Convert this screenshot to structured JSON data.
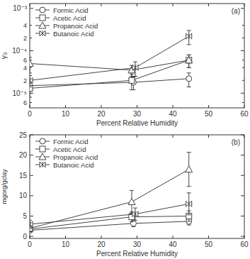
{
  "chart_data": [
    {
      "type": "line",
      "annotation": "(a)",
      "x_label": "Percent Relative Humidity",
      "y_label": "γ₀",
      "log": "y",
      "legend": "upper-left",
      "grid": false,
      "xlim": [
        0,
        60
      ],
      "xticks": [
        0,
        10,
        20,
        30,
        40,
        50,
        60
      ],
      "ylim": [
        4.5e-06,
        0.0013
      ],
      "yticks": [
        {
          "value": 6e-06,
          "label": "6"
        },
        {
          "value": 1e-05,
          "label": "10⁻⁵"
        },
        {
          "value": 2e-05,
          "label": "2"
        },
        {
          "value": 4e-05,
          "label": "4"
        },
        {
          "value": 6e-05,
          "label": "6"
        },
        {
          "value": 0.0001,
          "label": "10⁻⁴"
        },
        {
          "value": 0.0002,
          "label": "2"
        },
        {
          "value": 0.0004,
          "label": "4"
        },
        {
          "value": 0.001,
          "label": "10⁻³"
        }
      ],
      "series": [
        {
          "name": "Formic Acid",
          "marker": "circle",
          "color": "#444444",
          "x": [
            0,
            29,
            44.5
          ],
          "values": [
            1.5e-05,
            1.8e-05,
            2.2e-05
          ],
          "errors": [
            5e-06,
            6e-06,
            8e-06
          ]
        },
        {
          "name": "Acetic Acid",
          "marker": "square",
          "color": "#444444",
          "x": [
            0,
            28.5,
            44.5
          ],
          "values": [
            1.3e-05,
            2e-05,
            6e-05
          ],
          "errors": [
            5e-06,
            8e-06,
            2e-05
          ]
        },
        {
          "name": "Propanoic Acid",
          "marker": "triangle",
          "color": "#444444",
          "x": [
            0,
            28.5,
            44.5
          ],
          "values": [
            5e-05,
            3.5e-05,
            6e-05
          ],
          "errors": [
            2e-05,
            1e-05,
            2e-05
          ]
        },
        {
          "name": "Butanoic Acid",
          "marker": "bowtie",
          "color": "#444444",
          "x": [
            0,
            29.5,
            44.5
          ],
          "values": [
            2e-05,
            4e-05,
            0.00022
          ],
          "errors": [
            6e-06,
            1.5e-05,
            8e-05
          ]
        }
      ]
    },
    {
      "type": "line",
      "annotation": "(b)",
      "x_label": "Percent Relative Humidity",
      "y_label": "mgorg/gclay",
      "legend": "upper-left",
      "grid": false,
      "xlim": [
        0,
        60
      ],
      "xticks": [
        0,
        10,
        20,
        30,
        40,
        50,
        60
      ],
      "ylim": [
        -0.5,
        25
      ],
      "yticks": [
        0,
        5,
        10,
        15,
        20,
        25
      ],
      "series": [
        {
          "name": "Formic Acid",
          "marker": "circle",
          "color": "#444444",
          "x": [
            0,
            29,
            44.5
          ],
          "values": [
            1.5,
            3.2,
            3.7
          ],
          "errors": [
            0.5,
            0.8,
            0.9
          ]
        },
        {
          "name": "Acetic Acid",
          "marker": "square",
          "color": "#444444",
          "x": [
            0,
            28.5,
            44.5
          ],
          "values": [
            1.8,
            4.8,
            5.0
          ],
          "errors": [
            0.6,
            1.2,
            1.3
          ]
        },
        {
          "name": "Propanoic Acid",
          "marker": "triangle",
          "color": "#444444",
          "x": [
            0,
            28.5,
            44.5
          ],
          "values": [
            2.0,
            8.5,
            16.5
          ],
          "errors": [
            0.8,
            2.8,
            4.2
          ]
        },
        {
          "name": "Butanoic Acid",
          "marker": "bowtie",
          "color": "#444444",
          "x": [
            0,
            29.5,
            44.5
          ],
          "values": [
            3.0,
            5.5,
            8.0
          ],
          "errors": [
            1.0,
            1.5,
            2.7
          ]
        }
      ]
    }
  ]
}
